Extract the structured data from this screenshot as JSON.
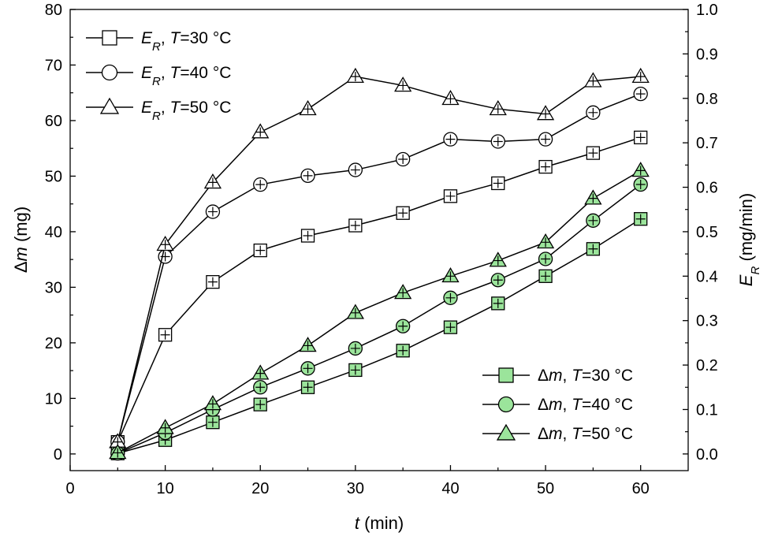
{
  "chart_data": {
    "type": "line",
    "x": [
      5,
      10,
      15,
      20,
      25,
      30,
      35,
      40,
      45,
      50,
      55,
      60
    ],
    "xlabel": {
      "italic": "t",
      "rest": " (min)"
    },
    "xlim": [
      0,
      65
    ],
    "xticks": [
      0,
      10,
      20,
      30,
      40,
      50,
      60
    ],
    "ylabel_left": {
      "prefix": "Δ",
      "italic": "m",
      "rest": " (mg)"
    },
    "ylim_left": [
      -3,
      80
    ],
    "yticks_left": [
      0,
      10,
      20,
      30,
      40,
      50,
      60,
      70,
      80
    ],
    "ylabel_right": {
      "italic": "E",
      "sub": "R",
      "rest": " (mg/min)"
    },
    "ylim_right": [
      -0.0375,
      1.0
    ],
    "yticks_right": [
      "0.0",
      "0.1",
      "0.2",
      "0.3",
      "0.4",
      "0.5",
      "0.6",
      "0.7",
      "0.8",
      "0.9",
      "1.0"
    ],
    "legend_top_left": [
      {
        "main": "E",
        "sub": "R",
        "sep": ", ",
        "tvar": "T",
        "temp": "=30 °C",
        "marker": "square"
      },
      {
        "main": "E",
        "sub": "R",
        "sep": ", ",
        "tvar": "T",
        "temp": "=40 °C",
        "marker": "circle"
      },
      {
        "main": "E",
        "sub": "R",
        "sep": ", ",
        "tvar": "T",
        "temp": "=50 °C",
        "marker": "triangle"
      }
    ],
    "legend_bottom_right": [
      {
        "prefix": "Δ",
        "main": "m",
        "sep": ", ",
        "tvar": "T",
        "temp": "=30 °C",
        "marker": "square"
      },
      {
        "prefix": "Δ",
        "main": "m",
        "sep": ", ",
        "tvar": "T",
        "temp": "=40 °C",
        "marker": "circle"
      },
      {
        "prefix": "Δ",
        "main": "m",
        "sep": ", ",
        "tvar": "T",
        "temp": "=50 °C",
        "marker": "triangle"
      }
    ],
    "series": [
      {
        "name": "E_R, T=30 °C",
        "axis": "right",
        "marker": "square",
        "filled": false,
        "values": [
          0.027,
          0.268,
          0.387,
          0.458,
          0.491,
          0.514,
          0.542,
          0.58,
          0.609,
          0.646,
          0.677,
          0.712
        ]
      },
      {
        "name": "E_R, T=40 °C",
        "axis": "right",
        "marker": "circle",
        "filled": false,
        "values": [
          0.027,
          0.444,
          0.545,
          0.606,
          0.626,
          0.639,
          0.663,
          0.708,
          0.703,
          0.708,
          0.768,
          0.81
        ]
      },
      {
        "name": "E_R, T=50 °C",
        "axis": "right",
        "marker": "triangle",
        "filled": false,
        "values": [
          0.027,
          0.471,
          0.611,
          0.724,
          0.776,
          0.849,
          0.829,
          0.799,
          0.776,
          0.765,
          0.839,
          0.849
        ]
      },
      {
        "name": "Δm, T=30 °C",
        "axis": "left",
        "marker": "square",
        "filled": true,
        "values": [
          0.1,
          2.5,
          5.7,
          8.9,
          12.0,
          15.1,
          18.6,
          22.8,
          27.1,
          32.0,
          36.9,
          42.3
        ]
      },
      {
        "name": "Δm, T=40 °C",
        "axis": "left",
        "marker": "circle",
        "filled": true,
        "values": [
          0.1,
          3.8,
          8.0,
          12.0,
          15.4,
          19.0,
          23.0,
          28.1,
          31.3,
          35.1,
          42.0,
          48.5
        ]
      },
      {
        "name": "Δm, T=50 °C",
        "axis": "left",
        "marker": "triangle",
        "filled": true,
        "values": [
          0.2,
          4.7,
          9.0,
          14.5,
          19.5,
          25.4,
          29.0,
          32.0,
          34.8,
          38.1,
          46.0,
          51.0
        ]
      }
    ],
    "colors": {
      "line": "#000000",
      "fill": "#9be49b",
      "open": "#ffffff"
    }
  }
}
